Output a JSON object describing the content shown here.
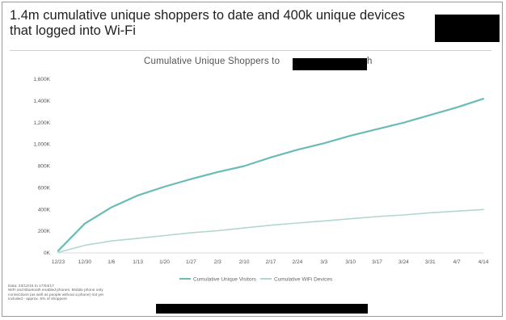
{
  "headline": {
    "line1": "1.4m cumulative unique shoppers to date and 400k unique devices",
    "line2": "that logged into Wi-Fi"
  },
  "chart_data": {
    "type": "line",
    "title": "Cumulative Unique Shoppers to",
    "title_tail": "h",
    "xlabel": "",
    "ylabel": "",
    "ylim": [
      0,
      1600
    ],
    "y_ticks": [
      "0K",
      "200K",
      "400K",
      "600K",
      "800K",
      "1,000K",
      "1,200K",
      "1,400K",
      "1,600K"
    ],
    "categories": [
      "12/23",
      "12/30",
      "1/6",
      "1/13",
      "1/20",
      "1/27",
      "2/3",
      "2/10",
      "2/17",
      "2/24",
      "3/3",
      "3/10",
      "3/17",
      "3/24",
      "3/31",
      "4/7",
      "4/14"
    ],
    "grid": false,
    "legend_position": "bottom",
    "series": [
      {
        "name": "Cumulative Unique Visitors",
        "color": "#6bbbb6",
        "values": [
          20,
          270,
          420,
          530,
          610,
          680,
          745,
          800,
          880,
          950,
          1010,
          1080,
          1140,
          1200,
          1270,
          1340,
          1420
        ]
      },
      {
        "name": "Cumulative WiFi Devices",
        "color": "#b3d6d2",
        "values": [
          5,
          70,
          110,
          135,
          160,
          185,
          205,
          230,
          255,
          275,
          295,
          315,
          335,
          350,
          370,
          385,
          400
        ]
      }
    ]
  },
  "footnote": {
    "lines": [
      "Data: 23/12/15 to 17/04/17",
      "WiFi and Bluetooth enabled phones. Mobile phone only",
      "connections (as well as people without a phone) not yet",
      "included - approx. 5% of shoppers"
    ]
  },
  "colors": {
    "accent": "#6bbbb6",
    "secondary": "#b3d6d2",
    "redaction": "#000000"
  }
}
